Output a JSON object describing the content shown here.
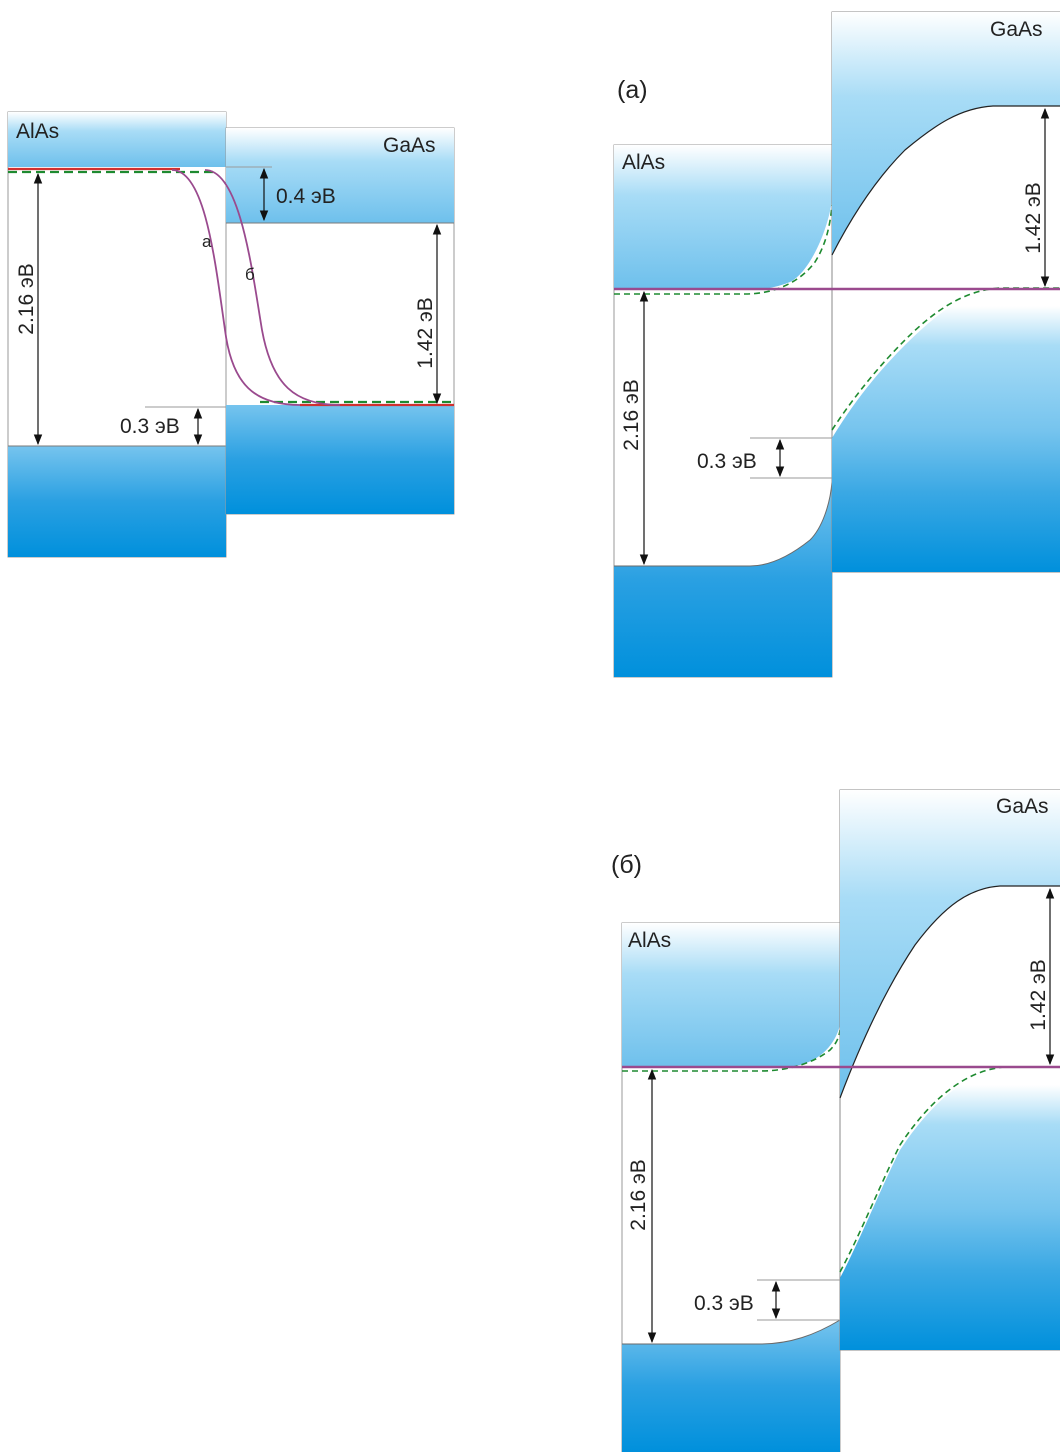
{
  "colors": {
    "band_light": "#ffffff",
    "band_dark": "#0090dc",
    "band_mid": "#76c4ee",
    "fermi_solid": "#d03030",
    "fermi_dashed": "#1e8a30",
    "curve": "#9a4a8e",
    "outline": "#8a8a8a",
    "arrow": "#111111"
  },
  "left": {
    "label_alas": "AlAs",
    "label_gaas": "GaAs",
    "gap_alas": "2.16 эВ",
    "gap_gaas": "1.42 эВ",
    "offset_cb": "0.4 эВ",
    "offset_vb": "0.3 эВ",
    "curve_a": "а",
    "curve_b": "б"
  },
  "right_a": {
    "panel_label": "(а)",
    "label_alas": "AlAs",
    "label_gaas": "GaAs",
    "gap_alas": "2.16 эВ",
    "gap_gaas": "1.42 эВ",
    "offset_vb": "0.3 эВ"
  },
  "right_b": {
    "panel_label": "(б)",
    "label_alas": "AlAs",
    "label_gaas": "GaAs",
    "gap_alas": "2.16 эВ",
    "gap_gaas": "1.42 эВ",
    "offset_vb": "0.3 эВ"
  }
}
